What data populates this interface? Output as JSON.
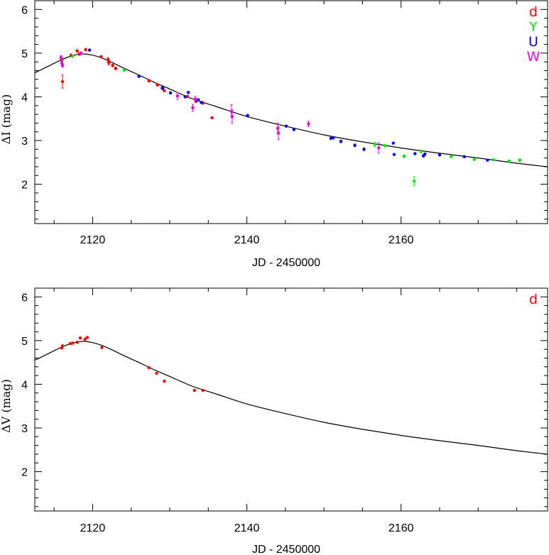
{
  "chart_data": [
    {
      "type": "scatter",
      "xlabel": "JD - 2450000",
      "ylabel": "ΔI (mag)",
      "xlim": [
        2112.5,
        2179
      ],
      "ylim": [
        1.1,
        6.2
      ],
      "xticks": [
        "2120",
        "2140",
        "2160"
      ],
      "xtick_values": [
        2120,
        2140,
        2160
      ],
      "yticks": [
        "2",
        "3",
        "4",
        "5",
        "6"
      ],
      "ytick_values": [
        2,
        3,
        4,
        5,
        6
      ],
      "legend_position": "top-right",
      "model_curve": {
        "x": [
          2112.5,
          2114,
          2116,
          2117.5,
          2119,
          2120.5,
          2122,
          2124,
          2126,
          2128,
          2130,
          2133,
          2136,
          2140,
          2145,
          2150,
          2155,
          2160,
          2165,
          2170,
          2175,
          2179
        ],
        "y": [
          4.55,
          4.68,
          4.85,
          4.95,
          4.98,
          4.93,
          4.83,
          4.66,
          4.5,
          4.33,
          4.18,
          3.95,
          3.78,
          3.55,
          3.33,
          3.13,
          2.97,
          2.83,
          2.71,
          2.6,
          2.48,
          2.4
        ]
      },
      "series": [
        {
          "name": "d",
          "color": "#ff0000",
          "x": [
            2116.0,
            2116.1,
            2117.2,
            2118.0,
            2118.3,
            2119.1,
            2121.1,
            2122.0,
            2122.1,
            2122.6,
            2123.0,
            2127.3,
            2128.4,
            2129.0,
            2129.3,
            2132.3,
            2133.4,
            2134.3,
            2135.5
          ],
          "y": [
            4.85,
            4.35,
            4.95,
            5.05,
            4.98,
            5.08,
            4.92,
            4.85,
            4.78,
            4.72,
            4.65,
            4.37,
            4.27,
            4.2,
            4.14,
            4.01,
            3.9,
            3.86,
            3.52
          ],
          "err": [
            0.03,
            0.15,
            0.03,
            0.03,
            0.03,
            0.03,
            0.02,
            0.05,
            0.05,
            0.03,
            0.03,
            0.03,
            0.02,
            0.02,
            0.02,
            0.02,
            0.03,
            0.03,
            0.02
          ]
        },
        {
          "name": "Y",
          "color": "#00ee00",
          "x": [
            2117.4,
            2124.1,
            2156.6,
            2157.9,
            2160.4,
            2161.7,
            2162.6,
            2166.5,
            2169.5,
            2172.0,
            2174.0,
            2175.4
          ],
          "y": [
            4.93,
            4.61,
            2.91,
            2.88,
            2.64,
            2.07,
            2.75,
            2.63,
            2.57,
            2.56,
            2.53,
            2.55
          ],
          "err": [
            0.02,
            0.02,
            0.05,
            0.03,
            0.03,
            0.1,
            0.03,
            0.02,
            0.02,
            0.02,
            0.02,
            0.03
          ]
        },
        {
          "name": "U",
          "color": "#0000ee",
          "x": [
            2119.6,
            2126.0,
            2129.1,
            2130.1,
            2132.0,
            2132.4,
            2133.7,
            2134.1,
            2140.1,
            2145.1,
            2146.1,
            2150.9,
            2151.2,
            2152.2,
            2154.0,
            2155.2,
            2159.0,
            2159.1,
            2161.8,
            2162.9,
            2163.1,
            2165.0,
            2168.2,
            2171.2
          ],
          "y": [
            5.07,
            4.47,
            4.2,
            4.09,
            4.0,
            4.1,
            3.93,
            3.87,
            3.57,
            3.33,
            3.25,
            3.05,
            3.06,
            2.98,
            2.89,
            2.8,
            2.94,
            2.68,
            2.7,
            2.65,
            2.69,
            2.67,
            2.63,
            2.55
          ],
          "err": [
            0.02,
            0.02,
            0.04,
            0.02,
            0.02,
            0.02,
            0.03,
            0.02,
            0.03,
            0.02,
            0.02,
            0.02,
            0.02,
            0.03,
            0.03,
            0.03,
            0.02,
            0.02,
            0.02,
            0.03,
            0.02,
            0.02,
            0.02,
            0.02
          ]
        },
        {
          "name": "W",
          "color": "#ee00ee",
          "x": [
            2115.9,
            2116.0,
            2116.1,
            2118.5,
            2131.0,
            2133.0,
            2133.3,
            2138.0,
            2138.1,
            2144.0,
            2144.1,
            2148.0,
            2157.1
          ],
          "y": [
            4.9,
            4.78,
            4.72,
            5.0,
            4.02,
            3.75,
            3.95,
            3.67,
            3.55,
            3.28,
            3.17,
            3.38,
            2.83
          ],
          "err": [
            0.04,
            0.04,
            0.04,
            0.03,
            0.08,
            0.08,
            0.06,
            0.15,
            0.15,
            0.12,
            0.15,
            0.06,
            0.12
          ]
        }
      ]
    },
    {
      "type": "scatter",
      "xlabel": "JD - 2450000",
      "ylabel": "ΔV (mag)",
      "xlim": [
        2112.5,
        2179
      ],
      "ylim": [
        1.1,
        6.2
      ],
      "xticks": [
        "2120",
        "2140",
        "2160"
      ],
      "xtick_values": [
        2120,
        2140,
        2160
      ],
      "yticks": [
        "2",
        "3",
        "4",
        "5",
        "6"
      ],
      "ytick_values": [
        2,
        3,
        4,
        5,
        6
      ],
      "legend_position": "top-right",
      "model_curve": {
        "x": [
          2112.5,
          2114,
          2116,
          2117.5,
          2119,
          2120.5,
          2122,
          2124,
          2126,
          2128,
          2130,
          2133,
          2136,
          2140,
          2145,
          2150,
          2155,
          2160,
          2165,
          2170,
          2175,
          2179
        ],
        "y": [
          4.55,
          4.68,
          4.85,
          4.95,
          4.98,
          4.93,
          4.83,
          4.66,
          4.5,
          4.33,
          4.18,
          3.95,
          3.78,
          3.55,
          3.33,
          3.13,
          2.97,
          2.83,
          2.71,
          2.6,
          2.48,
          2.4
        ]
      },
      "series": [
        {
          "name": "d",
          "color": "#ff0000",
          "x": [
            2116.0,
            2116.1,
            2117.1,
            2117.4,
            2118.0,
            2118.4,
            2119.0,
            2119.3,
            2121.2,
            2127.3,
            2128.3,
            2129.3,
            2133.2,
            2134.3
          ],
          "y": [
            4.83,
            4.88,
            4.93,
            4.94,
            4.96,
            5.06,
            5.03,
            5.07,
            4.84,
            4.38,
            4.25,
            4.07,
            3.86,
            3.86
          ],
          "err": [
            0.02,
            0.02,
            0.02,
            0.02,
            0.02,
            0.02,
            0.02,
            0.02,
            0.02,
            0.02,
            0.02,
            0.02,
            0.02,
            0.02
          ]
        }
      ]
    }
  ]
}
